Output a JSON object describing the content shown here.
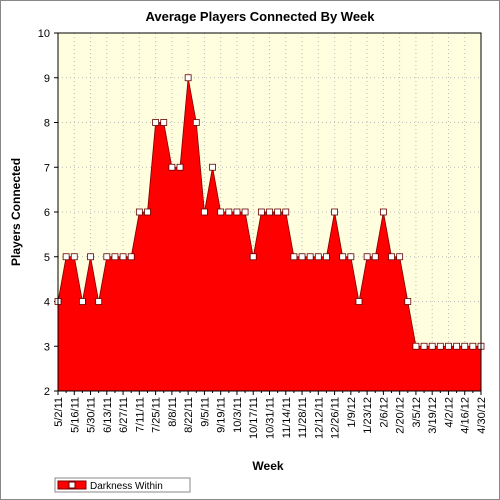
{
  "chart_data": {
    "type": "area",
    "title": "Average Players Connected By Week",
    "x_label": "Week",
    "y_label": "Players Connected",
    "categories": [
      "5/2/11",
      null,
      "5/16/11",
      null,
      "5/30/11",
      null,
      "6/13/11",
      null,
      "6/27/11",
      null,
      "7/11/11",
      null,
      "7/25/11",
      null,
      "8/8/11",
      null,
      "8/22/11",
      null,
      "9/5/11",
      null,
      "9/19/11",
      null,
      "10/3/11",
      null,
      "10/17/11",
      null,
      "10/31/11",
      null,
      "11/14/11",
      null,
      "11/28/11",
      null,
      "12/12/11",
      null,
      "12/26/11",
      null,
      "1/9/12",
      null,
      "1/23/12",
      null,
      "2/6/12",
      null,
      "2/20/12",
      null,
      "3/5/12",
      null,
      "3/19/12",
      null,
      "4/2/12",
      null,
      "4/16/12",
      null,
      "4/30/12"
    ],
    "series": [
      {
        "name": "Darkness Within",
        "color": "#ff0000",
        "values": [
          4,
          5,
          5,
          4,
          5,
          4,
          5,
          5,
          5,
          5,
          6,
          6,
          8,
          8,
          7,
          7,
          9,
          8,
          6,
          7,
          6,
          6,
          6,
          6,
          5,
          6,
          6,
          6,
          6,
          5,
          5,
          5,
          5,
          5,
          6,
          5,
          5,
          4,
          5,
          5,
          6,
          5,
          5,
          4,
          3,
          3,
          3,
          3,
          3,
          3,
          3,
          3,
          3
        ]
      }
    ],
    "ylim": [
      2,
      10
    ],
    "yticks": [
      2,
      3,
      4,
      5,
      6,
      7,
      8,
      9,
      10
    ],
    "grid": true
  }
}
